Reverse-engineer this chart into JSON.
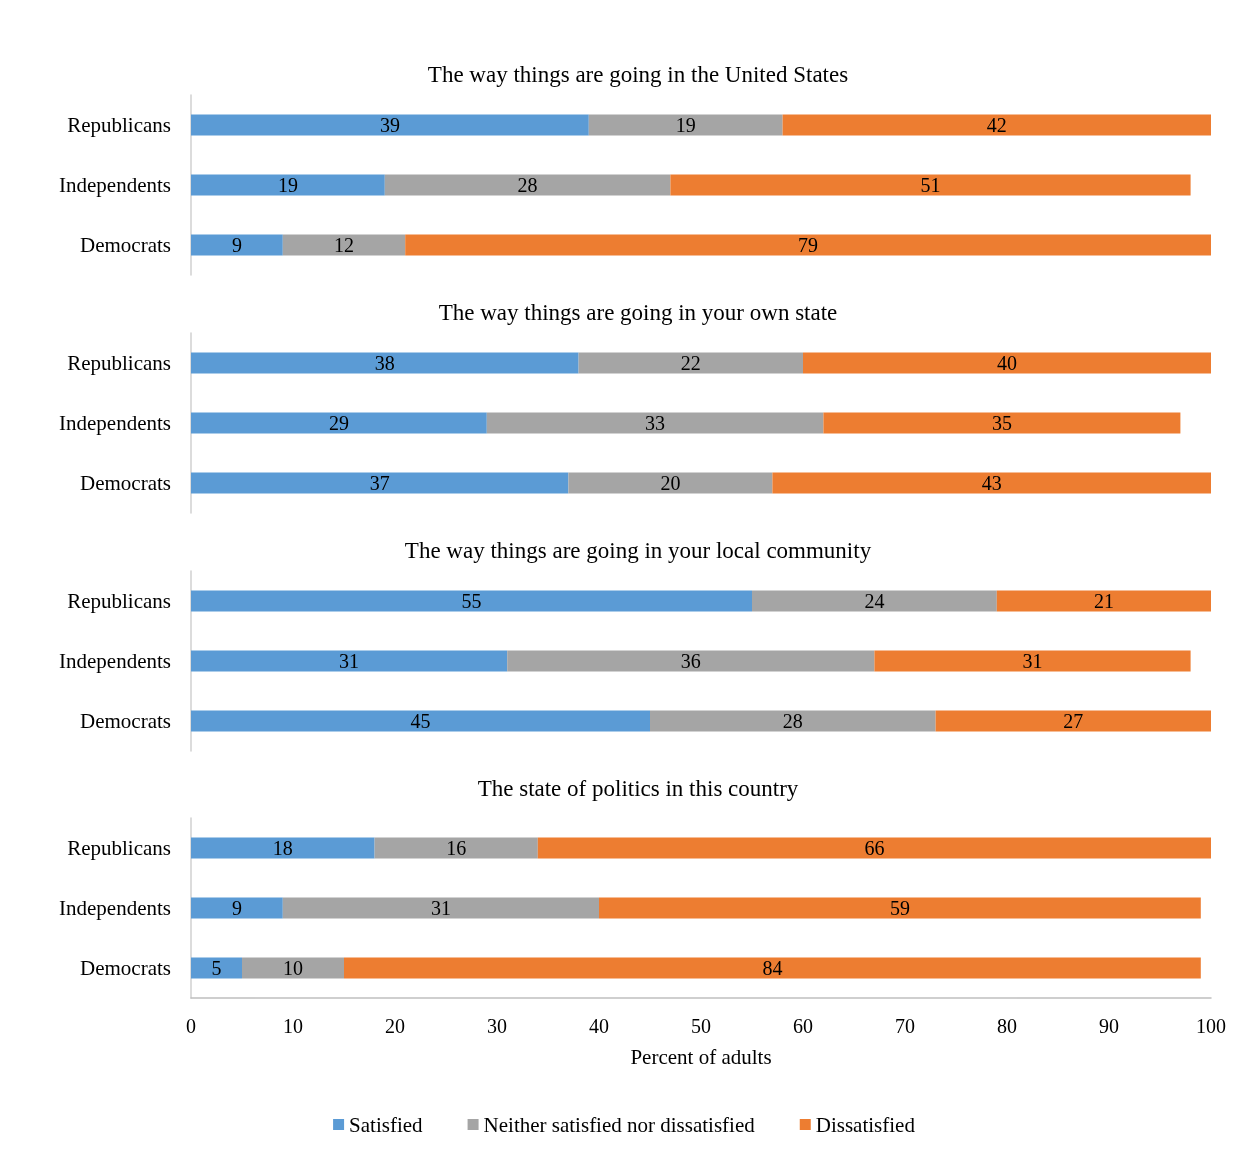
{
  "chart_data": [
    {
      "type": "bar",
      "orientation": "horizontal",
      "stacked": true,
      "title": "The way things are going in the United States",
      "categories": [
        "Republicans",
        "Independents",
        "Democrats"
      ],
      "xlim": [
        0,
        100
      ],
      "tick_labels": "y",
      "data_labels": true,
      "legend": false,
      "grid": false,
      "series": [
        {
          "color": "#5b9bd5",
          "values": [
            39,
            19,
            9
          ]
        },
        {
          "color": "#a5a5a5",
          "values": [
            19,
            28,
            12
          ]
        },
        {
          "color": "#ed7d31",
          "values": [
            42,
            51,
            79
          ]
        }
      ]
    },
    {
      "type": "bar",
      "orientation": "horizontal",
      "stacked": true,
      "title": "The way things are going in your own state",
      "categories": [
        "Republicans",
        "Independents",
        "Democrats"
      ],
      "xlim": [
        0,
        100
      ],
      "tick_labels": "y",
      "data_labels": true,
      "legend": false,
      "grid": false,
      "series": [
        {
          "color": "#5b9bd5",
          "values": [
            38,
            29,
            37
          ]
        },
        {
          "color": "#a5a5a5",
          "values": [
            22,
            33,
            20
          ]
        },
        {
          "color": "#ed7d31",
          "values": [
            40,
            35,
            43
          ]
        }
      ]
    },
    {
      "type": "bar",
      "orientation": "horizontal",
      "stacked": true,
      "title": "The way things are going in your local community",
      "categories": [
        "Republicans",
        "Independents",
        "Democrats"
      ],
      "xlim": [
        0,
        100
      ],
      "tick_labels": "y",
      "data_labels": true,
      "legend": false,
      "grid": false,
      "series": [
        {
          "color": "#5b9bd5",
          "values": [
            55,
            31,
            45
          ]
        },
        {
          "color": "#a5a5a5",
          "values": [
            24,
            36,
            28
          ]
        },
        {
          "color": "#ed7d31",
          "values": [
            21,
            31,
            27
          ]
        }
      ]
    },
    {
      "type": "bar",
      "orientation": "horizontal",
      "stacked": true,
      "title": "The state of politics in this country",
      "categories": [
        "Republicans",
        "Independents",
        "Democrats"
      ],
      "xlim": [
        0,
        100
      ],
      "xticks": [
        0,
        10,
        20,
        30,
        40,
        50,
        60,
        70,
        80,
        90,
        100
      ],
      "xlabel": "Percent of adults",
      "data_labels": true,
      "legend": "bottom",
      "grid": false,
      "series": [
        {
          "name": "Satisfied",
          "color": "#5b9bd5",
          "values": [
            18,
            9,
            5
          ]
        },
        {
          "name": "Neither satisfied nor dissatisfied",
          "color": "#a5a5a5",
          "values": [
            16,
            31,
            10
          ]
        },
        {
          "name": "Dissatisfied",
          "color": "#ed7d31",
          "values": [
            66,
            59,
            84
          ]
        }
      ]
    }
  ]
}
